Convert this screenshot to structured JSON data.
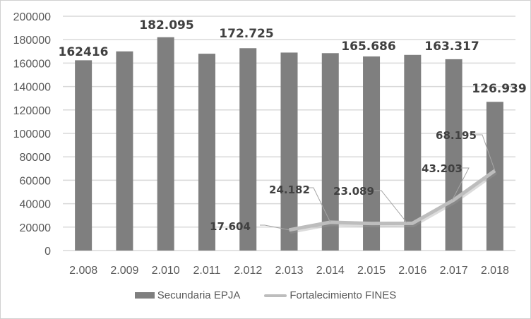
{
  "chart_data": {
    "type": "bar",
    "title": "",
    "xlabel": "",
    "ylabel": "",
    "ylim": [
      0,
      200000
    ],
    "yticks": [
      "0",
      "20000",
      "40000",
      "60000",
      "80000",
      "100000",
      "120000",
      "140000",
      "160000",
      "180000",
      "200000"
    ],
    "grid": true,
    "legend_position": "bottom",
    "categories": [
      "2.008",
      "2.009",
      "2.010",
      "2.011",
      "2.012",
      "2.013",
      "2.014",
      "2.015",
      "2.016",
      "2.017",
      "2.018"
    ],
    "series": [
      {
        "name": "Secundaria EPJA",
        "type": "bar",
        "values": [
          162416,
          170000,
          182095,
          168000,
          172725,
          169000,
          168500,
          165686,
          167000,
          163317,
          126939
        ],
        "labels": [
          "162416",
          "",
          "182.095",
          "",
          "172.725",
          "",
          "",
          "165.686",
          "",
          "163.317",
          "126.939"
        ]
      },
      {
        "name": "Fortalecimiento FINES",
        "type": "line",
        "values": [
          null,
          null,
          null,
          null,
          null,
          17604,
          24182,
          23089,
          23300,
          43203,
          68195
        ],
        "labels": [
          "",
          "",
          "",
          "",
          "",
          "17.604",
          "24.182",
          "23.089",
          "",
          "43.203",
          "68.195"
        ]
      }
    ]
  },
  "legend": {
    "bar": "Secundaria EPJA",
    "line": "Fortalecimiento FINES"
  },
  "colors": {
    "bar": "#7f7f7f",
    "line": "#bdbdbd",
    "grid": "#d9d9d9",
    "text": "#595959",
    "label": "#404040"
  }
}
